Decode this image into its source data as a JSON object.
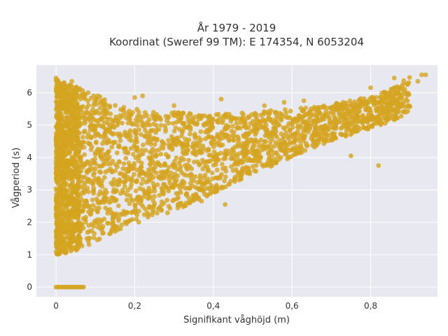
{
  "chart_data": {
    "type": "scatter",
    "title_line1": "År 1979 - 2019",
    "title_line2": "Koordinat (Sweref 99 TM): E 174354, N 6053204",
    "xlabel": "Signifikant våghöjd (m)",
    "ylabel": "Vågperiod (s)",
    "xlim": [
      -0.05,
      0.97
    ],
    "ylim": [
      -0.3,
      6.85
    ],
    "x_ticks": [
      0,
      0.2,
      0.4,
      0.6,
      0.8
    ],
    "x_tick_labels": [
      "0",
      "0,2",
      "0,4",
      "0,6",
      "0,8"
    ],
    "y_ticks": [
      0,
      1,
      2,
      3,
      4,
      5,
      6
    ],
    "y_tick_labels": [
      "0",
      "1",
      "2",
      "3",
      "4",
      "5",
      "6"
    ],
    "grid": true,
    "marker_color": "#D4A420",
    "plot_background": "#E8E8F0",
    "series_envelope": {
      "description_points_x": [
        0,
        0.05,
        0.1,
        0.15,
        0.2,
        0.25,
        0.3,
        0.35,
        0.4,
        0.45,
        0.5,
        0.55,
        0.6,
        0.65,
        0.7,
        0.75,
        0.8,
        0.85,
        0.9
      ],
      "lower_y": [
        1.0,
        1.1,
        1.4,
        1.7,
        1.95,
        2.15,
        2.35,
        2.6,
        2.9,
        3.2,
        3.5,
        3.75,
        4.0,
        4.25,
        4.5,
        4.7,
        4.9,
        5.1,
        5.4
      ],
      "upper_y": [
        6.4,
        6.2,
        5.95,
        5.7,
        5.5,
        5.4,
        5.4,
        5.35,
        5.35,
        5.35,
        5.4,
        5.45,
        5.5,
        5.55,
        5.65,
        5.75,
        5.9,
        6.1,
        6.55
      ]
    },
    "zero_period_points": {
      "x": [
        0.0,
        0.005,
        0.01,
        0.015,
        0.02,
        0.025,
        0.03,
        0.035,
        0.04,
        0.045,
        0.05,
        0.055,
        0.06,
        0.065,
        0.07
      ],
      "y": [
        0,
        0,
        0,
        0,
        0,
        0,
        0,
        0,
        0,
        0,
        0,
        0,
        0,
        0,
        0
      ]
    },
    "outlier_points": {
      "x": [
        0.0,
        0.0,
        0.04,
        0.2,
        0.22,
        0.3,
        0.42,
        0.53,
        0.58,
        0.63,
        0.68,
        0.73,
        0.78,
        0.8,
        0.86,
        0.88,
        0.92,
        0.93,
        0.94,
        0.82,
        0.75,
        0.43,
        0.31,
        0.25,
        0.37
      ],
      "y": [
        6.45,
        6.38,
        6.35,
        5.85,
        5.9,
        5.6,
        5.8,
        5.6,
        5.7,
        5.75,
        5.55,
        5.7,
        5.3,
        6.15,
        6.45,
        6.2,
        6.35,
        6.55,
        6.55,
        3.75,
        4.05,
        2.55,
        2.55,
        2.8,
        2.65
      ]
    }
  }
}
